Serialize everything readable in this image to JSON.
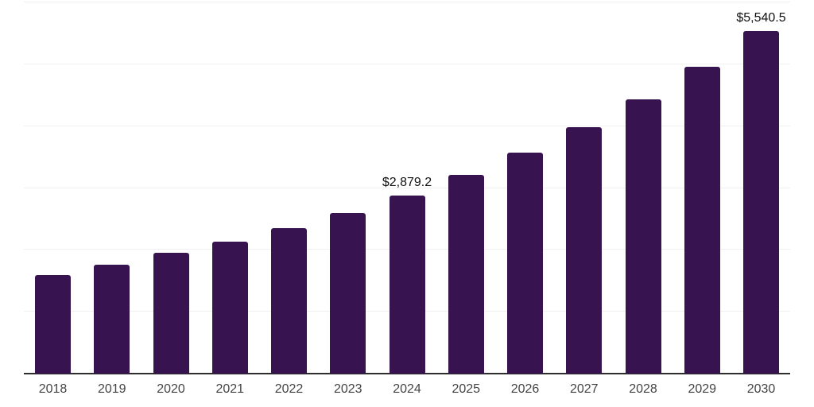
{
  "chart_data": {
    "type": "bar",
    "title": "",
    "xlabel": "",
    "ylabel": "",
    "categories": [
      "2018",
      "2019",
      "2020",
      "2021",
      "2022",
      "2023",
      "2024",
      "2025",
      "2026",
      "2027",
      "2028",
      "2029",
      "2030"
    ],
    "values": [
      1588,
      1755,
      1950,
      2133,
      2354,
      2601,
      2879.2,
      3214,
      3566,
      3980,
      4439,
      4957,
      5540.5
    ],
    "annotations": {
      "2024": "$2,879.2",
      "2030": "$5,540.5"
    },
    "ylim": [
      0,
      6000
    ],
    "gridline_values": [
      1000,
      2000,
      3000,
      4000,
      5000,
      6000
    ],
    "grid": "horizontal",
    "legend": "none",
    "y_axis_labels_visible": false,
    "colors": {
      "bar": "#371350",
      "grid": "#f0f0f0",
      "axis": "#2e2e2e",
      "tick_label": "#444444",
      "annotation": "#111111",
      "background": "#ffffff"
    }
  }
}
